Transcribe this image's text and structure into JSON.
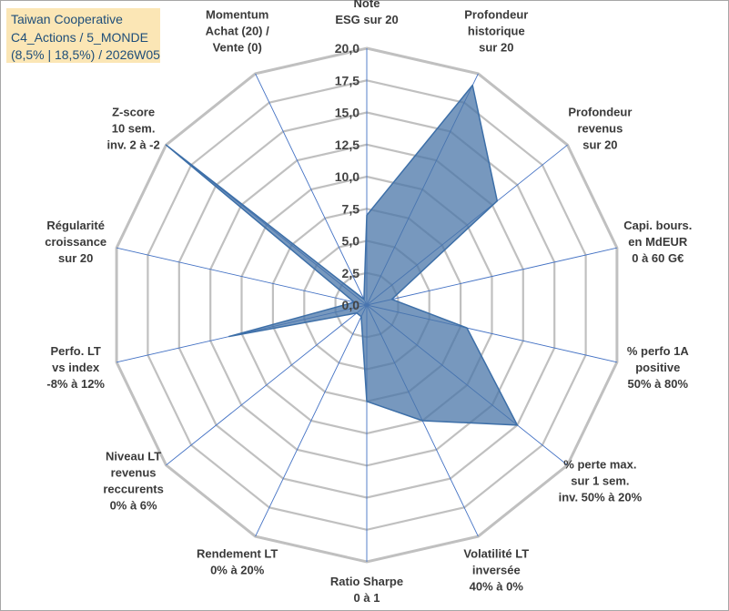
{
  "title": {
    "line1": "Taiwan Cooperative",
    "line2": "C4_Actions / 5_MONDE",
    "line3": "(8,5% | 18,5%) / 2026W05"
  },
  "chart_data": {
    "type": "radar",
    "rmin": 0,
    "rmax": 20,
    "ticks": [
      "0,0",
      "2,5",
      "5,0",
      "7,5",
      "10,0",
      "12,5",
      "15,0",
      "17,5",
      "20,0"
    ],
    "axes": [
      {
        "label": [
          "Note",
          "ESG sur 20"
        ],
        "value": 7.0
      },
      {
        "label": [
          "Profondeur",
          "historique",
          "sur 20"
        ],
        "value": 19.0
      },
      {
        "label": [
          "Profondeur",
          "revenus",
          "sur 20"
        ],
        "value": 13.0
      },
      {
        "label": [
          "Capi. bours.",
          "en MdEUR",
          "0 à 60 G€"
        ],
        "value": 2.0
      },
      {
        "label": [
          "% perfo 1A",
          "positive",
          "50% à 80%"
        ],
        "value": 8.0
      },
      {
        "label": [
          "% perte max.",
          "sur 1 sem.",
          "inv. 50% à 20%"
        ],
        "value": 15.0
      },
      {
        "label": [
          "Volatilité LT",
          "inversée",
          "40% à 0%"
        ],
        "value": 10.0
      },
      {
        "label": [
          "Ratio Sharpe",
          "0 à 1"
        ],
        "value": 7.5
      },
      {
        "label": [
          "Rendement LT",
          "0% à 20%"
        ],
        "value": 1.0
      },
      {
        "label": [
          "Niveau LT",
          "revenus",
          "reccurents",
          "0% à 6%"
        ],
        "value": 1.0
      },
      {
        "label": [
          "Perfo. LT",
          "vs index",
          "-8% à 12%"
        ],
        "value": 11.0
      },
      {
        "label": [
          "Régularité",
          "croissance",
          "sur 20"
        ],
        "value": 1.0
      },
      {
        "label": [
          "Z-score",
          "10 sem.",
          "inv. 2 à -2"
        ],
        "value": 20.0
      },
      {
        "label": [
          "Momentum",
          "Achat (20) /",
          "Vente (0)"
        ],
        "value": 0.5
      }
    ],
    "colors": {
      "fill": "#4a76a8",
      "fill_opacity": 0.75,
      "stroke": "#3d6fa8",
      "grid": "#c0c0c0",
      "spoke": "#4472c4"
    },
    "grid": true,
    "legend": "none"
  }
}
